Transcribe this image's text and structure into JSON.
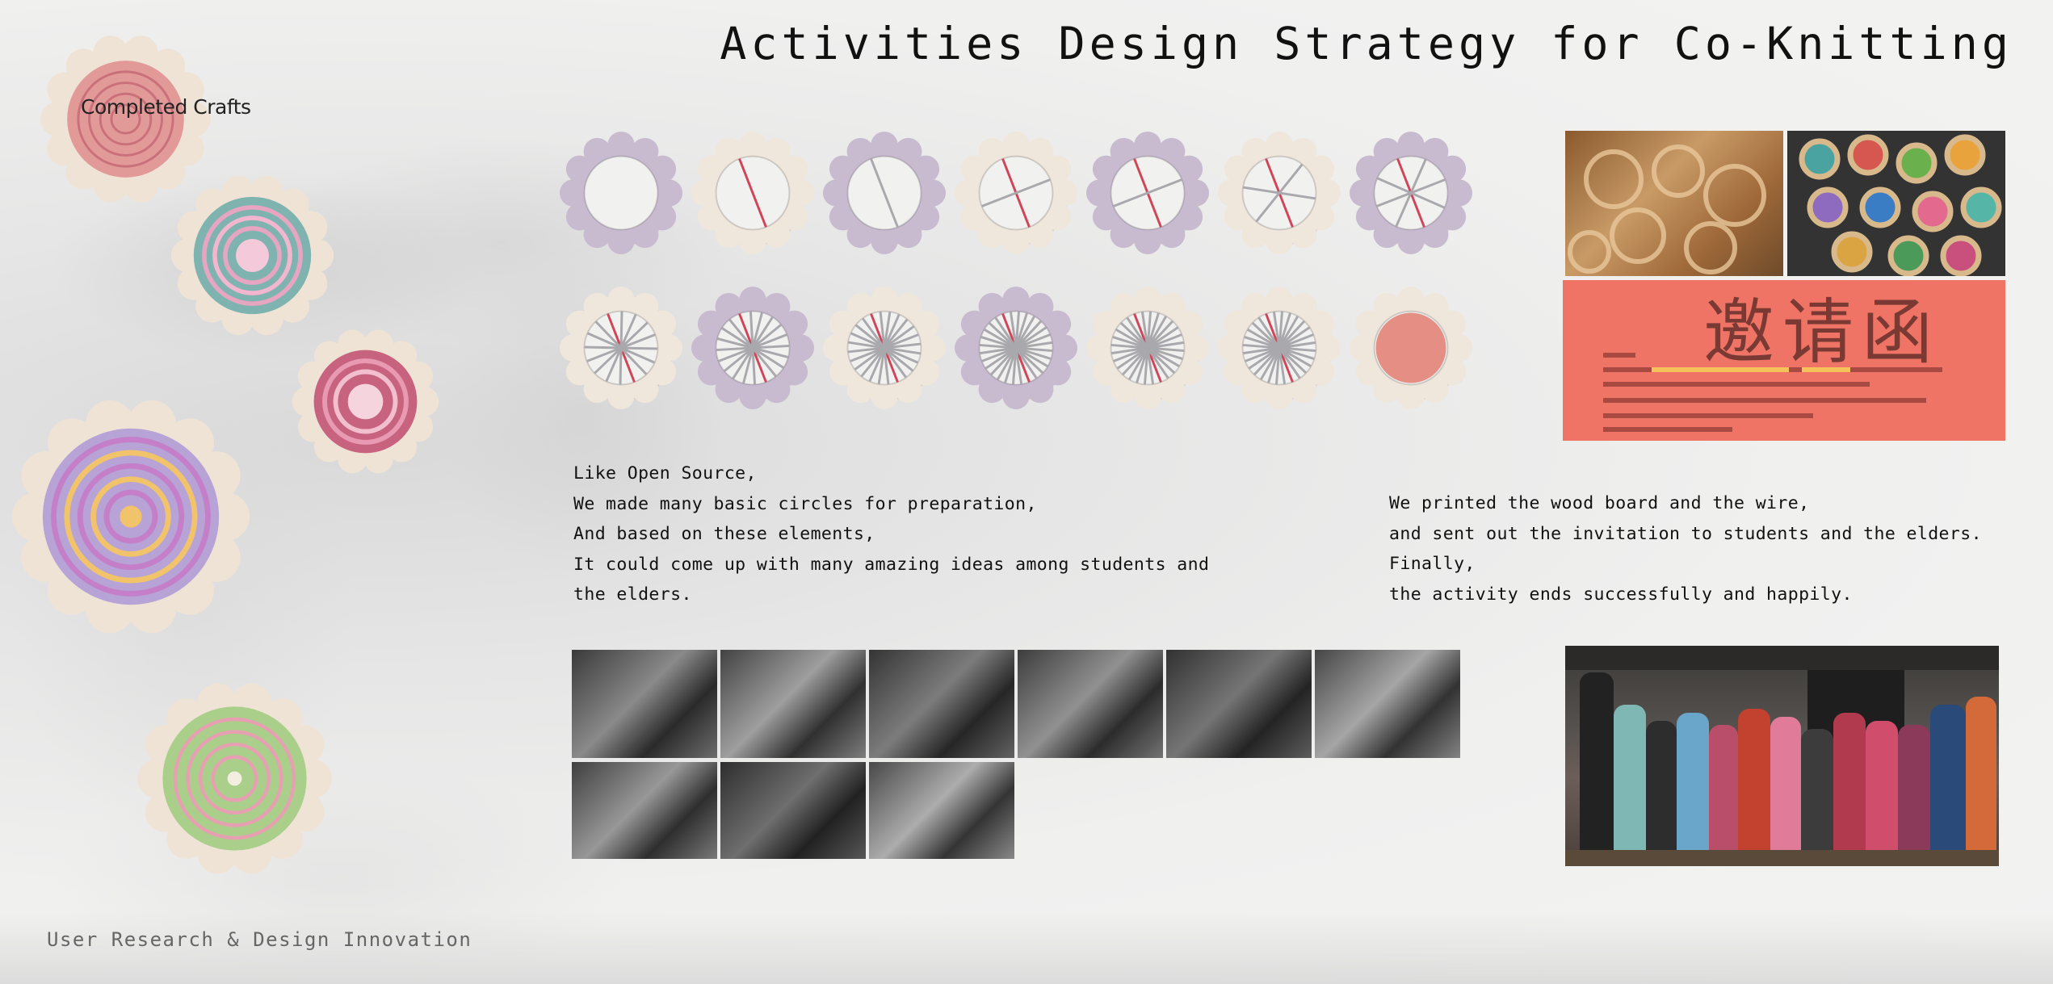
{
  "title": "Activities Design Strategy for Co-Knitting",
  "completed_crafts_label": "Completed Crafts",
  "footer": "User Research & Design Innovation",
  "left_description": [
    "Like Open Source,",
    "We made many basic circles for preparation,",
    "And based on these elements,",
    "It could come up with many amazing ideas among students and",
    "the elders."
  ],
  "right_description": [
    "We printed the wood board and the wire,",
    "and sent out the invitation to students and the elders.",
    "Finally,",
    "the activity ends successfully and happily."
  ],
  "invitation": {
    "heading": "邀请函"
  },
  "colors": {
    "loom_lavender": "#c8bbd0",
    "loom_cream": "#efe6dc",
    "thread_red": "#d0455a",
    "invitation_bg": "#ef7466"
  }
}
